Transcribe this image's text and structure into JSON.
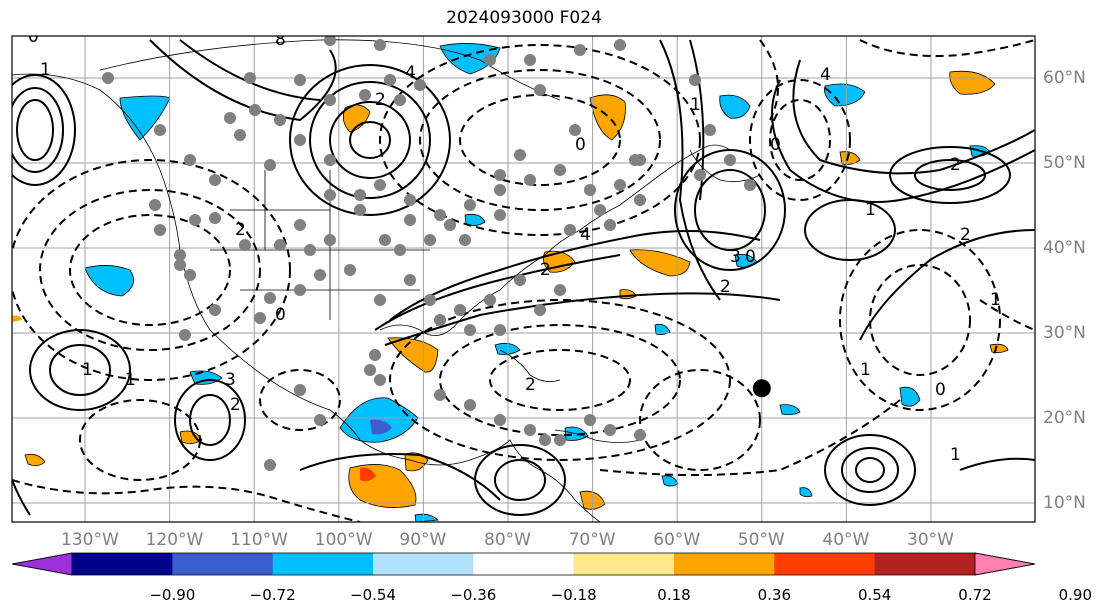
{
  "title": "2024093000 F024",
  "lon_labels": [
    "130°W",
    "120°W",
    "110°W",
    "100°W",
    "90°W",
    "80°W",
    "70°W",
    "60°W",
    "50°W",
    "40°W",
    "30°W"
  ],
  "lat_labels": [
    "60°N",
    "50°N",
    "40°N",
    "30°N",
    "20°N",
    "10°N"
  ],
  "colorbar": {
    "ticks": [
      "−0.90",
      "−0.72",
      "−0.54",
      "−0.36",
      "−0.18",
      "0.18",
      "0.36",
      "0.54",
      "0.72",
      "0.90"
    ],
    "colors": [
      "#9b30d9",
      "#00008b",
      "#3a5fcd",
      "#00bfff",
      "#b0e2ff",
      "#ffffff",
      "#ffe88a",
      "#ffa500",
      "#ff3b00",
      "#b22222",
      "#ff80b0"
    ]
  },
  "contour_labels": [
    "0",
    "8",
    "4",
    "2",
    "1",
    "0",
    "3",
    "2",
    "4",
    "0",
    "2",
    "1",
    "2",
    "1",
    "2",
    "1",
    "0",
    "1",
    "2",
    "1",
    "3",
    "2",
    "4",
    "0",
    "2",
    "1",
    "0",
    "1"
  ],
  "marker": {
    "lon": -50,
    "lat": 23.5,
    "color": "#000000"
  }
}
